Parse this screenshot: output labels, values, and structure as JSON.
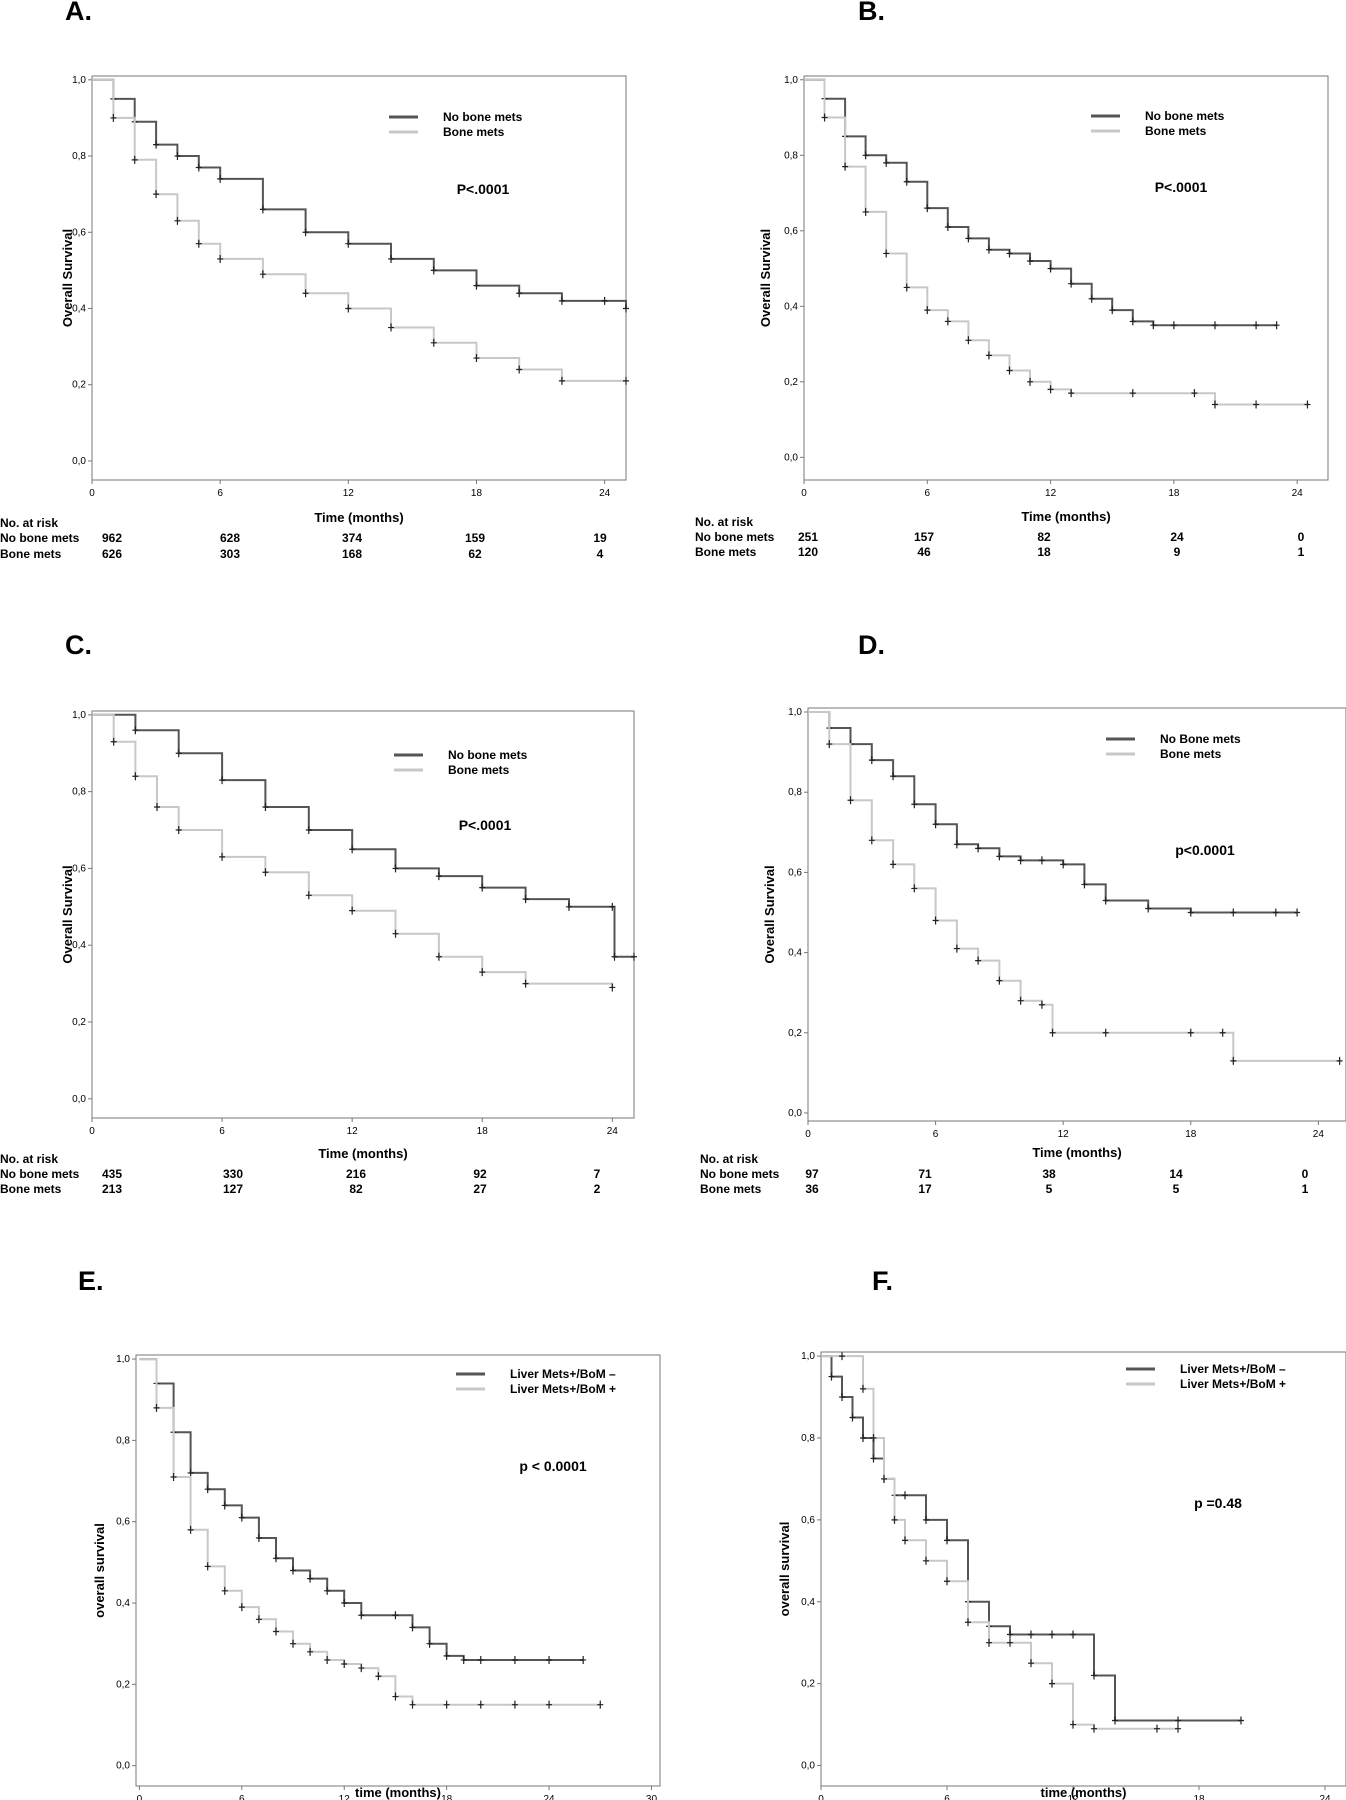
{
  "chart_data": [
    {
      "type": "line",
      "panel": "A.",
      "xlabel": "Time (months)",
      "ylabel": "Overall Survival",
      "xticks": [
        0,
        6,
        12,
        18,
        24
      ],
      "yticks": [
        "0,0",
        "0,2",
        "0,4",
        "0,6",
        "0,8",
        "1,0"
      ],
      "xlim": [
        0,
        25
      ],
      "ylim": [
        -0.05,
        1.01
      ],
      "pvalue": "P<.0001",
      "legend_position": "top-right",
      "series": [
        {
          "name": "No bone mets",
          "color": "#555555",
          "x": [
            0,
            1,
            2,
            3,
            4,
            5,
            6,
            8,
            10,
            12,
            14,
            16,
            18,
            20,
            22,
            24,
            25
          ],
          "y": [
            1.0,
            0.95,
            0.89,
            0.83,
            0.8,
            0.77,
            0.74,
            0.66,
            0.6,
            0.57,
            0.53,
            0.5,
            0.46,
            0.44,
            0.42,
            0.42,
            0.4
          ]
        },
        {
          "name": "Bone mets",
          "color": "#c8c8c8",
          "x": [
            0,
            1,
            2,
            3,
            4,
            5,
            6,
            8,
            10,
            12,
            14,
            16,
            18,
            20,
            22,
            25
          ],
          "y": [
            1.0,
            0.9,
            0.79,
            0.7,
            0.63,
            0.57,
            0.53,
            0.49,
            0.44,
            0.4,
            0.35,
            0.31,
            0.27,
            0.24,
            0.21,
            0.21
          ]
        }
      ],
      "risk_table": {
        "header": "No. at risk",
        "rows": [
          {
            "label": "No bone mets",
            "values": [
              "962",
              "628",
              "374",
              "159",
              "19"
            ]
          },
          {
            "label": "Bone mets",
            "values": [
              "626",
              "303",
              "168",
              "62",
              "4"
            ]
          }
        ]
      }
    },
    {
      "type": "line",
      "panel": "B.",
      "xlabel": "Time (months)",
      "ylabel": "Overall Survival",
      "xticks": [
        0,
        6,
        12,
        18,
        24
      ],
      "yticks": [
        "0,0",
        "0,2",
        "0,4",
        "0,6",
        "0,8",
        "1,0"
      ],
      "xlim": [
        0,
        25.5
      ],
      "ylim": [
        -0.06,
        1.01
      ],
      "pvalue": "P<.0001",
      "legend_position": "top-right",
      "series": [
        {
          "name": "No bone mets",
          "color": "#555555",
          "x": [
            0,
            1,
            2,
            3,
            4,
            5,
            6,
            7,
            8,
            9,
            10,
            11,
            12,
            13,
            14,
            15,
            16,
            17,
            18,
            20,
            22,
            23
          ],
          "y": [
            1.0,
            0.95,
            0.85,
            0.8,
            0.78,
            0.73,
            0.66,
            0.61,
            0.58,
            0.55,
            0.54,
            0.52,
            0.5,
            0.46,
            0.42,
            0.39,
            0.36,
            0.35,
            0.35,
            0.35,
            0.35,
            0.35
          ]
        },
        {
          "name": "Bone mets",
          "color": "#c8c8c8",
          "x": [
            0,
            1,
            2,
            3,
            4,
            5,
            6,
            7,
            8,
            9,
            10,
            11,
            12,
            13,
            16,
            19,
            20,
            22,
            24.5
          ],
          "y": [
            1.0,
            0.9,
            0.77,
            0.65,
            0.54,
            0.45,
            0.39,
            0.36,
            0.31,
            0.27,
            0.23,
            0.2,
            0.18,
            0.17,
            0.17,
            0.17,
            0.14,
            0.14,
            0.14
          ]
        }
      ],
      "risk_table": {
        "header": "No. at risk",
        "rows": [
          {
            "label": "No bone mets",
            "values": [
              "251",
              "157",
              "82",
              "24",
              "0"
            ]
          },
          {
            "label": "Bone mets",
            "values": [
              "120",
              "46",
              "18",
              "9",
              "1"
            ]
          }
        ]
      }
    },
    {
      "type": "line",
      "panel": "C.",
      "xlabel": "Time (months)",
      "ylabel": "Overall Survival",
      "xticks": [
        0,
        6,
        12,
        18,
        24
      ],
      "yticks": [
        "0,0",
        "0,2",
        "0,4",
        "0,6",
        "0,8",
        "1,0"
      ],
      "xlim": [
        0,
        25
      ],
      "ylim": [
        -0.05,
        1.01
      ],
      "pvalue": "P<.0001",
      "legend_position": "top-right",
      "series": [
        {
          "name": "No bone mets",
          "color": "#555555",
          "x": [
            0,
            2,
            4,
            6,
            8,
            10,
            12,
            14,
            16,
            18,
            20,
            22,
            24,
            24.1,
            25
          ],
          "y": [
            1.0,
            0.96,
            0.9,
            0.83,
            0.76,
            0.7,
            0.65,
            0.6,
            0.58,
            0.55,
            0.52,
            0.5,
            0.5,
            0.37,
            0.37
          ]
        },
        {
          "name": "Bone mets",
          "color": "#c8c8c8",
          "x": [
            0,
            1,
            2,
            3,
            4,
            6,
            8,
            10,
            12,
            14,
            16,
            18,
            20,
            24
          ],
          "y": [
            1.0,
            0.93,
            0.84,
            0.76,
            0.7,
            0.63,
            0.59,
            0.53,
            0.49,
            0.43,
            0.37,
            0.33,
            0.3,
            0.29
          ]
        }
      ],
      "risk_table": {
        "header": "No. at risk",
        "rows": [
          {
            "label": "No bone mets",
            "values": [
              "435",
              "330",
              "216",
              "92",
              "7"
            ]
          },
          {
            "label": "Bone mets",
            "values": [
              "213",
              "127",
              "82",
              "27",
              "2"
            ]
          }
        ]
      }
    },
    {
      "type": "line",
      "panel": "D.",
      "xlabel": "Time (months)",
      "ylabel": "Overall Survival",
      "xticks": [
        0,
        6,
        12,
        18,
        24
      ],
      "yticks": [
        "0,0",
        "0,2",
        "0,4",
        "0,6",
        "0,8",
        "1,0"
      ],
      "xlim": [
        0,
        25.3
      ],
      "ylim": [
        -0.02,
        1.01
      ],
      "pvalue": "p<0.0001",
      "legend_position": "top-right",
      "series": [
        {
          "name": "No Bone mets",
          "color": "#555555",
          "x": [
            0,
            1,
            2,
            3,
            4,
            5,
            6,
            7,
            8,
            9,
            10,
            11,
            12,
            13,
            14,
            16,
            18,
            20,
            22,
            23
          ],
          "y": [
            1.0,
            0.96,
            0.92,
            0.88,
            0.84,
            0.77,
            0.72,
            0.67,
            0.66,
            0.64,
            0.63,
            0.63,
            0.62,
            0.57,
            0.53,
            0.51,
            0.5,
            0.5,
            0.5,
            0.5
          ]
        },
        {
          "name": "Bone mets",
          "color": "#c8c8c8",
          "x": [
            0,
            1,
            2,
            3,
            4,
            5,
            6,
            7,
            8,
            9,
            10,
            11,
            11.5,
            14,
            18,
            19.5,
            20,
            25
          ],
          "y": [
            1.0,
            0.92,
            0.78,
            0.68,
            0.62,
            0.56,
            0.48,
            0.41,
            0.38,
            0.33,
            0.28,
            0.27,
            0.2,
            0.2,
            0.2,
            0.2,
            0.13,
            0.13
          ]
        }
      ],
      "risk_table": {
        "header": "No. at risk",
        "rows": [
          {
            "label": "No bone mets",
            "values": [
              "97",
              "71",
              "38",
              "14",
              "0"
            ]
          },
          {
            "label": "Bone mets",
            "values": [
              "36",
              "17",
              "5",
              "5",
              "1"
            ]
          }
        ]
      }
    },
    {
      "type": "line",
      "panel": "E.",
      "xlabel": "time (months)",
      "ylabel": "overall survival",
      "xticks": [
        0,
        6,
        12,
        18,
        24,
        30
      ],
      "yticks": [
        "0,0",
        "0,2",
        "0,4",
        "0,6",
        "0,8",
        "1,0"
      ],
      "xlim": [
        -0.2,
        30.5
      ],
      "ylim": [
        -0.05,
        1.01
      ],
      "pvalue": "p < 0.0001",
      "legend_position": "top-right",
      "series": [
        {
          "name": "Liver Mets+/BoM –",
          "color": "#555555",
          "x": [
            0,
            1,
            2,
            3,
            4,
            5,
            6,
            7,
            8,
            9,
            10,
            11,
            12,
            13,
            15,
            16,
            17,
            18,
            19,
            20,
            22,
            24,
            26
          ],
          "y": [
            1.0,
            0.94,
            0.82,
            0.72,
            0.68,
            0.64,
            0.61,
            0.56,
            0.51,
            0.48,
            0.46,
            0.43,
            0.4,
            0.37,
            0.37,
            0.34,
            0.3,
            0.27,
            0.26,
            0.26,
            0.26,
            0.26,
            0.26
          ]
        },
        {
          "name": "Liver Mets+/BoM +",
          "color": "#c8c8c8",
          "x": [
            0,
            1,
            2,
            3,
            4,
            5,
            6,
            7,
            8,
            9,
            10,
            11,
            12,
            13,
            14,
            15,
            16,
            18,
            20,
            22,
            24,
            27
          ],
          "y": [
            1.0,
            0.88,
            0.71,
            0.58,
            0.49,
            0.43,
            0.39,
            0.36,
            0.33,
            0.3,
            0.28,
            0.26,
            0.25,
            0.24,
            0.22,
            0.17,
            0.15,
            0.15,
            0.15,
            0.15,
            0.15,
            0.15
          ]
        }
      ]
    },
    {
      "type": "line",
      "panel": "F.",
      "xlabel": "time (months)",
      "ylabel": "overall survival",
      "xticks": [
        0,
        6,
        12,
        18,
        24
      ],
      "yticks": [
        "0,0",
        "0,2",
        "0,4",
        "0,6",
        "0,8",
        "1,0"
      ],
      "xlim": [
        0,
        25
      ],
      "ylim": [
        -0.05,
        1.01
      ],
      "pvalue": "p =0.48",
      "legend_position": "top-right",
      "series": [
        {
          "name": "Liver Mets+/BoM –",
          "color": "#555555",
          "x": [
            0,
            0.5,
            1,
            1.5,
            2,
            2.5,
            3,
            3.5,
            4,
            5,
            6,
            7,
            8,
            9,
            10,
            11,
            12,
            13,
            14,
            17,
            20
          ],
          "y": [
            1.0,
            0.95,
            0.9,
            0.85,
            0.8,
            0.75,
            0.7,
            0.66,
            0.66,
            0.6,
            0.55,
            0.4,
            0.34,
            0.32,
            0.32,
            0.32,
            0.32,
            0.22,
            0.11,
            0.11,
            0.11
          ]
        },
        {
          "name": "Liver Mets+/BoM +",
          "color": "#c8c8c8",
          "x": [
            0,
            1,
            2,
            2.5,
            3,
            3.5,
            4,
            5,
            6,
            7,
            8,
            9,
            10,
            11,
            12,
            13,
            16,
            17
          ],
          "y": [
            1.0,
            1.0,
            0.92,
            0.8,
            0.7,
            0.6,
            0.55,
            0.5,
            0.45,
            0.35,
            0.3,
            0.3,
            0.25,
            0.2,
            0.1,
            0.09,
            0.09,
            0.09
          ]
        }
      ]
    }
  ]
}
